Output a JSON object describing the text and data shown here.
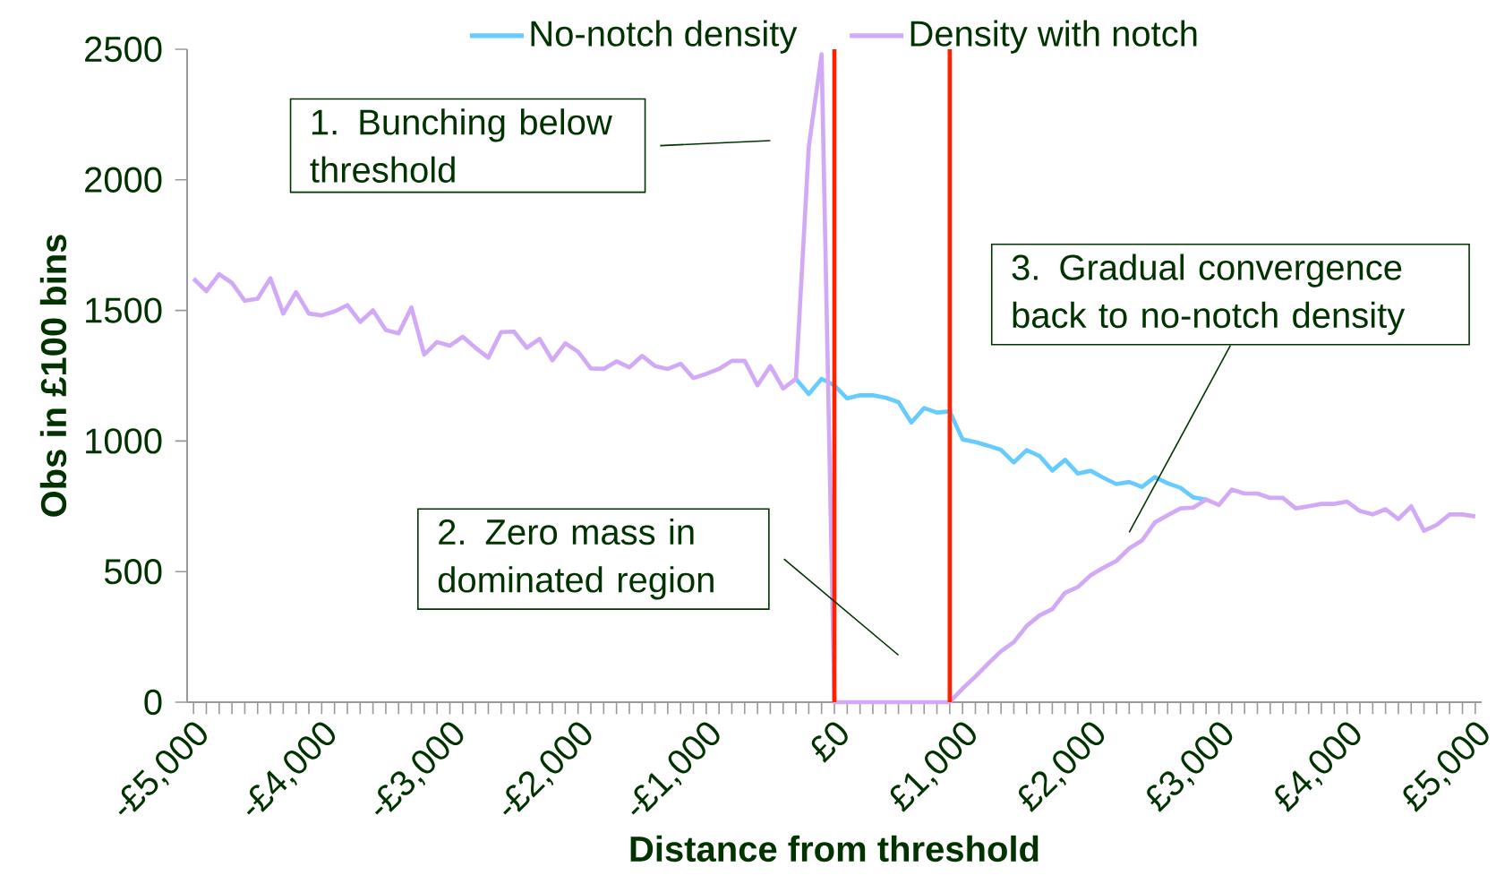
{
  "chart_data": {
    "type": "line",
    "xlabel": "Distance from threshold",
    "ylabel": "Obs in £100 bins",
    "x": [
      -5000,
      -4900,
      -4800,
      -4700,
      -4600,
      -4500,
      -4400,
      -4300,
      -4200,
      -4100,
      -4000,
      -3900,
      -3800,
      -3700,
      -3600,
      -3500,
      -3400,
      -3300,
      -3200,
      -3100,
      -3000,
      -2900,
      -2800,
      -2700,
      -2600,
      -2500,
      -2400,
      -2300,
      -2200,
      -2100,
      -2000,
      -1900,
      -1800,
      -1700,
      -1600,
      -1500,
      -1400,
      -1300,
      -1200,
      -1100,
      -1000,
      -900,
      -800,
      -700,
      -600,
      -500,
      -400,
      -300,
      -200,
      -100,
      0,
      100,
      200,
      300,
      400,
      500,
      600,
      700,
      800,
      900,
      1000,
      1100,
      1200,
      1300,
      1400,
      1500,
      1600,
      1700,
      1800,
      1900,
      2000,
      2100,
      2200,
      2300,
      2400,
      2500,
      2600,
      2700,
      2800,
      2900,
      3000,
      3100,
      3200,
      3300,
      3400,
      3500,
      3600,
      3700,
      3800,
      3900,
      4000,
      4100,
      4200,
      4300,
      4400,
      4500,
      4600,
      4700,
      4800,
      4900,
      5000
    ],
    "series": [
      {
        "name": "No-notch density",
        "color": "#66ccff",
        "values": [
          null,
          null,
          null,
          null,
          null,
          null,
          null,
          null,
          null,
          null,
          null,
          null,
          null,
          null,
          null,
          null,
          null,
          null,
          null,
          null,
          null,
          null,
          null,
          null,
          null,
          null,
          null,
          null,
          null,
          null,
          null,
          null,
          null,
          null,
          null,
          null,
          null,
          null,
          null,
          null,
          null,
          null,
          null,
          null,
          null,
          null,
          null,
          1238,
          1180,
          1238,
          1213,
          1163,
          1175,
          1175,
          1166,
          1149,
          1071,
          1126,
          1109,
          1113,
          1006,
          996,
          982,
          966,
          918,
          965,
          943,
          887,
          928,
          875,
          886,
          859,
          835,
          843,
          824,
          862,
          838,
          821,
          784,
          776,
          null,
          null,
          null,
          null,
          null,
          null,
          null,
          null,
          null,
          null,
          null,
          null,
          null,
          null,
          null,
          null,
          null,
          null,
          null,
          null,
          null
        ]
      },
      {
        "name": "Density with notch",
        "color": "#d2a9f7",
        "values": [
          1622,
          1574,
          1639,
          1605,
          1537,
          1545,
          1623,
          1488,
          1570,
          1488,
          1481,
          1496,
          1520,
          1456,
          1500,
          1425,
          1412,
          1511,
          1331,
          1379,
          1365,
          1399,
          1357,
          1319,
          1417,
          1419,
          1357,
          1391,
          1309,
          1374,
          1342,
          1278,
          1276,
          1305,
          1282,
          1326,
          1287,
          1276,
          1296,
          1241,
          1257,
          1276,
          1307,
          1307,
          1213,
          1287,
          1201,
          1238,
          2126,
          2481,
          0,
          0,
          0,
          0,
          0,
          0,
          0,
          0,
          0,
          0,
          52,
          98,
          148,
          195,
          230,
          292,
          332,
          356,
          419,
          441,
          486,
          515,
          541,
          589,
          619,
          688,
          716,
          742,
          745,
          776,
          755,
          814,
          799,
          799,
          782,
          782,
          742,
          750,
          759,
          759,
          768,
          732,
          719,
          739,
          701,
          750,
          656,
          679,
          719,
          719,
          711
        ]
      }
    ],
    "xlim": [
      -5050,
      5050
    ],
    "xticks": [
      {
        "value": -5000,
        "label": "-£5,000"
      },
      {
        "value": -4000,
        "label": "-£4,000"
      },
      {
        "value": -3000,
        "label": "-£3,000"
      },
      {
        "value": -2000,
        "label": "-£2,000"
      },
      {
        "value": -1000,
        "label": "-£1,000"
      },
      {
        "value": 0,
        "label": "£0"
      },
      {
        "value": 1000,
        "label": "£1,000"
      },
      {
        "value": 2000,
        "label": "£2,000"
      },
      {
        "value": 3000,
        "label": "£3,000"
      },
      {
        "value": 4000,
        "label": "£4,000"
      },
      {
        "value": 5000,
        "label": "£5,000"
      }
    ],
    "ylim": [
      0,
      2500
    ],
    "yticks": [
      0,
      500,
      1000,
      1500,
      2000,
      2500
    ],
    "ref_lines": [
      {
        "axis": "x",
        "value": 0,
        "color": "#ff2200"
      },
      {
        "axis": "x",
        "value": 900,
        "color": "#ff2200"
      }
    ],
    "annotations": [
      "1. Bunching below threshold",
      "2. Zero mass in dominated region",
      "3. Gradual convergence back to no-notch density"
    ],
    "legend": "top"
  }
}
